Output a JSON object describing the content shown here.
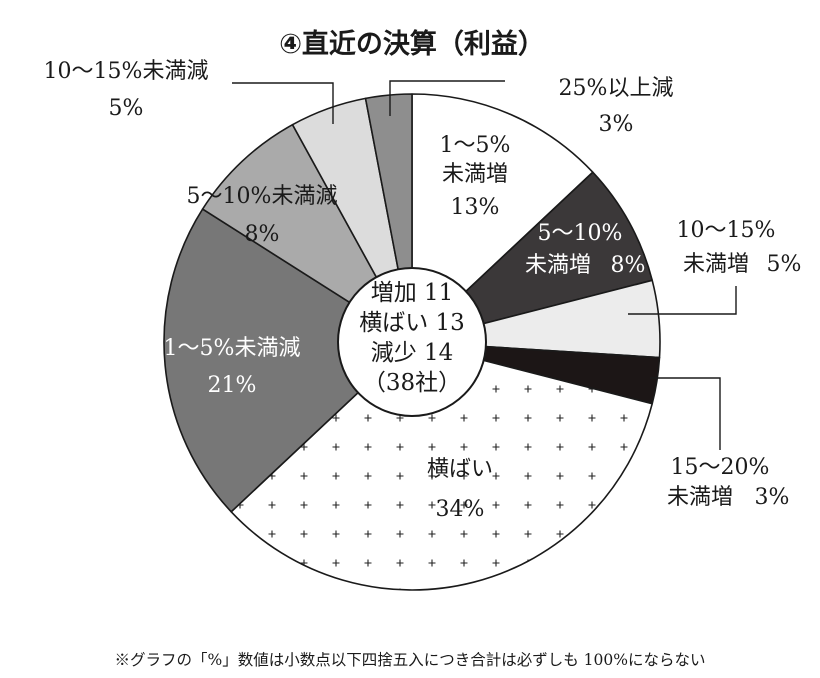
{
  "chart_data": {
    "type": "pie",
    "title": "④直近の決算（利益）",
    "slices": [
      {
        "label_lines": [
          "1～5%",
          "未満増"
        ],
        "pct_label": "13%",
        "value": 13,
        "fill": "#ffffff",
        "pattern": "none",
        "text": "dark",
        "style": "inside"
      },
      {
        "label_lines": [
          "5～10%",
          "未満増"
        ],
        "pct_label": "8%",
        "value": 8,
        "fill": "#3b3839",
        "pattern": "none",
        "text": "light",
        "style": "inside-inline"
      },
      {
        "label_lines": [
          "10～15%",
          "未満増"
        ],
        "pct_label": "5%",
        "value": 5,
        "fill": "#ececec",
        "pattern": "none",
        "text": "dark",
        "style": "outside-inline"
      },
      {
        "label_lines": [
          "15～20%",
          "未満増"
        ],
        "pct_label": "3%",
        "value": 3,
        "fill": "#1c1616",
        "pattern": "none",
        "text": "dark",
        "style": "outside"
      },
      {
        "label_lines": [
          "横ばい"
        ],
        "pct_label": "34%",
        "value": 34,
        "fill": "#ffffff",
        "pattern": "plus",
        "text": "dark",
        "style": "inside"
      },
      {
        "label_lines": [
          "1～5%未満減"
        ],
        "pct_label": "21%",
        "value": 21,
        "fill": "#777777",
        "pattern": "none",
        "text": "light",
        "style": "inside"
      },
      {
        "label_lines": [
          "5～10%未満減"
        ],
        "pct_label": "8%",
        "value": 8,
        "fill": "#aaaaaa",
        "pattern": "none",
        "text": "dark",
        "style": "inside"
      },
      {
        "label_lines": [
          "10～15%未満減"
        ],
        "pct_label": "5%",
        "value": 5,
        "fill": "#dcdcdc",
        "pattern": "none",
        "text": "dark",
        "style": "outside"
      },
      {
        "label_lines": [
          "25%以上減"
        ],
        "pct_label": "3%",
        "value": 3,
        "fill": "#8e8e8e",
        "pattern": "none",
        "text": "dark",
        "style": "outside"
      }
    ],
    "center_lines": [
      "増加 11",
      "横ばい 13",
      "減少 14",
      "（38社）"
    ]
  },
  "footnote": "※グラフの「%」数値は小数点以下四捨五入につき合計は必ずしも 100%にならない"
}
